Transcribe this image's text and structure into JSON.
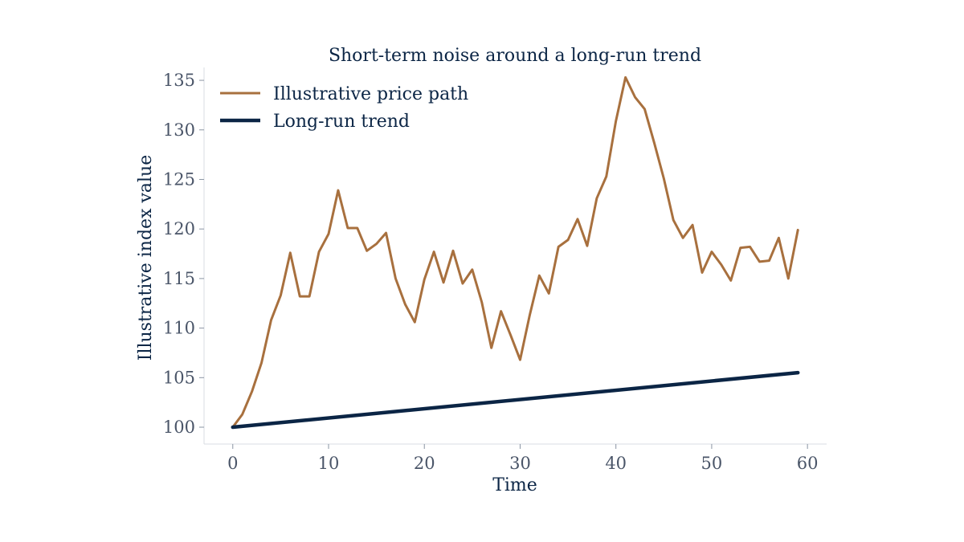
{
  "chart_data": {
    "type": "line",
    "title": "Short-term noise around a long-run trend",
    "xlabel": "Time",
    "ylabel": "Illustrative index value",
    "xlim": [
      -3,
      62
    ],
    "ylim": [
      98.3,
      136.3
    ],
    "x_ticks": [
      0,
      10,
      20,
      30,
      40,
      50,
      60
    ],
    "y_ticks": [
      100,
      105,
      110,
      115,
      120,
      125,
      130,
      135
    ],
    "grid": false,
    "legend": "top-left",
    "series": [
      {
        "name": "Illustrative price path",
        "color": "#a8703e",
        "x": [
          0,
          1,
          2,
          3,
          4,
          5,
          6,
          7,
          8,
          9,
          10,
          11,
          12,
          13,
          14,
          15,
          16,
          17,
          18,
          19,
          20,
          21,
          22,
          23,
          24,
          25,
          26,
          27,
          28,
          29,
          30,
          31,
          32,
          33,
          34,
          35,
          36,
          37,
          38,
          39,
          40,
          41,
          42,
          43,
          44,
          45,
          46,
          47,
          48,
          49,
          50,
          51,
          52,
          53,
          54,
          55,
          56,
          57,
          58,
          59
        ],
        "values": [
          100.0,
          101.3,
          103.6,
          106.5,
          110.8,
          113.3,
          117.6,
          113.2,
          113.2,
          117.7,
          119.5,
          123.9,
          120.1,
          120.1,
          117.8,
          118.5,
          119.6,
          115.0,
          112.4,
          110.6,
          114.9,
          117.7,
          114.6,
          117.8,
          114.5,
          115.9,
          112.6,
          108.0,
          111.7,
          109.3,
          106.8,
          111.3,
          115.3,
          113.5,
          118.2,
          118.9,
          121.0,
          118.3,
          123.1,
          125.3,
          130.9,
          135.3,
          133.3,
          132.1,
          128.7,
          125.1,
          120.9,
          119.1,
          120.4,
          115.6,
          117.7,
          116.4,
          114.8,
          118.1,
          118.2,
          116.7,
          116.8,
          119.1,
          115.0,
          119.9
        ]
      },
      {
        "name": "Long-run trend",
        "color": "#0b2545",
        "x": [
          0,
          59
        ],
        "values": [
          100.0,
          105.5
        ]
      }
    ]
  }
}
